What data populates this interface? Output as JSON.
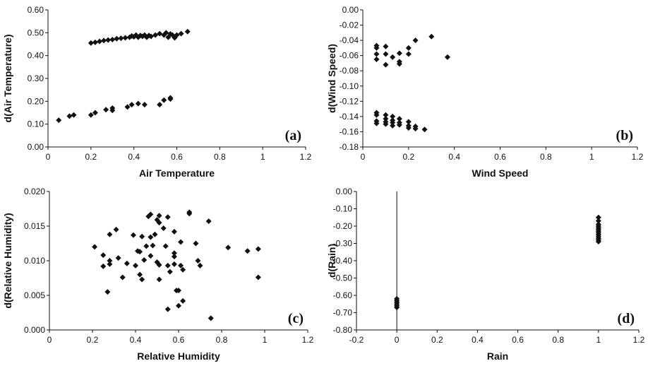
{
  "marker_color": "#111111",
  "chart_data": [
    {
      "type": "scatter",
      "panel_label": "(a)",
      "xlabel": "Air Temperature",
      "ylabel": "d(Air Temperature)",
      "xlim": [
        0,
        1.2
      ],
      "ylim": [
        0,
        0.6
      ],
      "xticks": [
        "0",
        "0.2",
        "0.4",
        "0.6",
        "0.8",
        "1",
        "1.2"
      ],
      "yticks": [
        "0.00",
        "0.10",
        "0.20",
        "0.30",
        "0.40",
        "0.50",
        "0.60"
      ],
      "points": [
        [
          0.05,
          0.117
        ],
        [
          0.1,
          0.135
        ],
        [
          0.12,
          0.14
        ],
        [
          0.2,
          0.14
        ],
        [
          0.22,
          0.15
        ],
        [
          0.27,
          0.163
        ],
        [
          0.3,
          0.16
        ],
        [
          0.3,
          0.17
        ],
        [
          0.37,
          0.175
        ],
        [
          0.39,
          0.185
        ],
        [
          0.42,
          0.19
        ],
        [
          0.45,
          0.185
        ],
        [
          0.52,
          0.185
        ],
        [
          0.54,
          0.205
        ],
        [
          0.57,
          0.21
        ],
        [
          0.57,
          0.215
        ],
        [
          0.2,
          0.455
        ],
        [
          0.22,
          0.458
        ],
        [
          0.24,
          0.462
        ],
        [
          0.26,
          0.466
        ],
        [
          0.28,
          0.468
        ],
        [
          0.3,
          0.47
        ],
        [
          0.32,
          0.474
        ],
        [
          0.34,
          0.476
        ],
        [
          0.36,
          0.478
        ],
        [
          0.38,
          0.48
        ],
        [
          0.39,
          0.486
        ],
        [
          0.4,
          0.482
        ],
        [
          0.41,
          0.49
        ],
        [
          0.42,
          0.48
        ],
        [
          0.43,
          0.488
        ],
        [
          0.44,
          0.484
        ],
        [
          0.45,
          0.49
        ],
        [
          0.46,
          0.48
        ],
        [
          0.47,
          0.488
        ],
        [
          0.48,
          0.484
        ],
        [
          0.5,
          0.49
        ],
        [
          0.52,
          0.496
        ],
        [
          0.54,
          0.49
        ],
        [
          0.55,
          0.5
        ],
        [
          0.56,
          0.48
        ],
        [
          0.57,
          0.495
        ],
        [
          0.58,
          0.49
        ],
        [
          0.59,
          0.478
        ],
        [
          0.6,
          0.49
        ],
        [
          0.62,
          0.496
        ],
        [
          0.65,
          0.505
        ]
      ]
    },
    {
      "type": "scatter",
      "panel_label": "(b)",
      "xlabel": "Wind Speed",
      "ylabel": "d(Wind Speed)",
      "xlim": [
        0,
        1.2
      ],
      "ylim": [
        -0.18,
        0
      ],
      "xticks": [
        "0",
        "0.2",
        "0.4",
        "0.6",
        "0.8",
        "1",
        "1.2"
      ],
      "yticks": [
        "-0.18",
        "-0.16",
        "-0.14",
        "-0.12",
        "-0.10",
        "-0.08",
        "-0.06",
        "-0.04",
        "-0.02",
        "0.00"
      ],
      "points": [
        [
          0.06,
          -0.047
        ],
        [
          0.06,
          -0.05
        ],
        [
          0.06,
          -0.058
        ],
        [
          0.06,
          -0.065
        ],
        [
          0.1,
          -0.048
        ],
        [
          0.1,
          -0.058
        ],
        [
          0.1,
          -0.072
        ],
        [
          0.13,
          -0.062
        ],
        [
          0.16,
          -0.057
        ],
        [
          0.16,
          -0.068
        ],
        [
          0.16,
          -0.071
        ],
        [
          0.2,
          -0.05
        ],
        [
          0.2,
          -0.058
        ],
        [
          0.23,
          -0.04
        ],
        [
          0.3,
          -0.035
        ],
        [
          0.37,
          -0.062
        ],
        [
          0.06,
          -0.135
        ],
        [
          0.06,
          -0.138
        ],
        [
          0.06,
          -0.146
        ],
        [
          0.06,
          -0.149
        ],
        [
          0.1,
          -0.138
        ],
        [
          0.1,
          -0.143
        ],
        [
          0.1,
          -0.147
        ],
        [
          0.1,
          -0.15
        ],
        [
          0.13,
          -0.14
        ],
        [
          0.13,
          -0.145
        ],
        [
          0.13,
          -0.148
        ],
        [
          0.13,
          -0.152
        ],
        [
          0.16,
          -0.143
        ],
        [
          0.16,
          -0.148
        ],
        [
          0.16,
          -0.151
        ],
        [
          0.2,
          -0.147
        ],
        [
          0.2,
          -0.152
        ],
        [
          0.2,
          -0.155
        ],
        [
          0.23,
          -0.153
        ],
        [
          0.23,
          -0.156
        ],
        [
          0.27,
          -0.157
        ]
      ]
    },
    {
      "type": "scatter",
      "panel_label": "(c)",
      "xlabel": "Relative Humidity",
      "ylabel": "d(Relative Humidity)",
      "xlim": [
        0,
        1.2
      ],
      "ylim": [
        0,
        0.02
      ],
      "xticks": [
        "0",
        "0.2",
        "0.4",
        "0.6",
        "0.8",
        "1",
        "1.2"
      ],
      "yticks": [
        "0.000",
        "0.005",
        "0.010",
        "0.015",
        "0.020"
      ],
      "points": [
        [
          0.21,
          0.012
        ],
        [
          0.25,
          0.0108
        ],
        [
          0.25,
          0.0092
        ],
        [
          0.27,
          0.0055
        ],
        [
          0.28,
          0.0138
        ],
        [
          0.28,
          0.01
        ],
        [
          0.28,
          0.0095
        ],
        [
          0.31,
          0.0145
        ],
        [
          0.32,
          0.0104
        ],
        [
          0.34,
          0.0076
        ],
        [
          0.36,
          0.0096
        ],
        [
          0.39,
          0.0137
        ],
        [
          0.4,
          0.0093
        ],
        [
          0.41,
          0.0114
        ],
        [
          0.42,
          0.0113
        ],
        [
          0.42,
          0.008
        ],
        [
          0.43,
          0.0135
        ],
        [
          0.43,
          0.0073
        ],
        [
          0.44,
          0.0101
        ],
        [
          0.45,
          0.0121
        ],
        [
          0.46,
          0.0164
        ],
        [
          0.47,
          0.0167
        ],
        [
          0.47,
          0.0134
        ],
        [
          0.47,
          0.0107
        ],
        [
          0.48,
          0.0122
        ],
        [
          0.49,
          0.0138
        ],
        [
          0.5,
          0.0159
        ],
        [
          0.5,
          0.0098
        ],
        [
          0.51,
          0.0165
        ],
        [
          0.51,
          0.0155
        ],
        [
          0.51,
          0.0094
        ],
        [
          0.51,
          0.0073
        ],
        [
          0.53,
          0.0147
        ],
        [
          0.54,
          0.0121
        ],
        [
          0.55,
          0.0163
        ],
        [
          0.55,
          0.0093
        ],
        [
          0.55,
          0.003
        ],
        [
          0.56,
          0.0084
        ],
        [
          0.58,
          0.0142
        ],
        [
          0.58,
          0.0111
        ],
        [
          0.58,
          0.0106
        ],
        [
          0.58,
          0.0095
        ],
        [
          0.59,
          0.0057
        ],
        [
          0.6,
          0.0057
        ],
        [
          0.6,
          0.0035
        ],
        [
          0.61,
          0.0093
        ],
        [
          0.61,
          0.0127
        ],
        [
          0.62,
          0.0087
        ],
        [
          0.62,
          0.0042
        ],
        [
          0.65,
          0.017
        ],
        [
          0.65,
          0.0168
        ],
        [
          0.68,
          0.0125
        ],
        [
          0.69,
          0.01
        ],
        [
          0.7,
          0.0093
        ],
        [
          0.74,
          0.0157
        ],
        [
          0.75,
          0.0017
        ],
        [
          0.83,
          0.0119
        ],
        [
          0.92,
          0.0114
        ],
        [
          0.97,
          0.0117
        ],
        [
          0.97,
          0.0076
        ]
      ]
    },
    {
      "type": "scatter",
      "panel_label": "(d)",
      "xlabel": "Rain",
      "ylabel": "d(Rain)",
      "xlim": [
        -0.2,
        1.2
      ],
      "ylim": [
        -0.8,
        0
      ],
      "xticks": [
        "-0.2",
        "0",
        "0.2",
        "0.4",
        "0.6",
        "0.8",
        "1",
        "1.2"
      ],
      "yticks": [
        "-0.80",
        "-0.70",
        "-0.60",
        "-0.50",
        "-0.40",
        "-0.30",
        "-0.20",
        "-0.10",
        "0.00"
      ],
      "points": [
        [
          0,
          -0.62
        ],
        [
          0,
          -0.63
        ],
        [
          0,
          -0.64
        ],
        [
          0,
          -0.65
        ],
        [
          0,
          -0.66
        ],
        [
          0,
          -0.67
        ],
        [
          1,
          -0.15
        ],
        [
          1,
          -0.17
        ],
        [
          1,
          -0.19
        ],
        [
          1,
          -0.2
        ],
        [
          1,
          -0.21
        ],
        [
          1,
          -0.22
        ],
        [
          1,
          -0.23
        ],
        [
          1,
          -0.24
        ],
        [
          1,
          -0.25
        ],
        [
          1,
          -0.26
        ],
        [
          1,
          -0.27
        ],
        [
          1,
          -0.28
        ],
        [
          1,
          -0.29
        ]
      ]
    }
  ]
}
